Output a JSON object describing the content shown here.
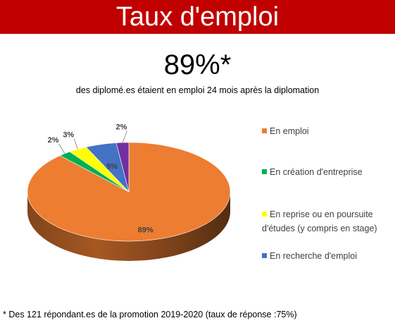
{
  "banner": {
    "title": "Taux d'emploi"
  },
  "headline": {
    "value": "89%*"
  },
  "subheadline": "des diplomé.es étaient en emploi 24 mois après la diplomation",
  "footnote": "* Des 121 répondant.es de la promotion 2019-2020 (taux de réponse :75%)",
  "chart_data": {
    "type": "pie",
    "style": "3d",
    "legend_position": "right",
    "slices": [
      {
        "name": "En emploi",
        "value": 89,
        "label": "89%",
        "color": "#ed7d31"
      },
      {
        "name": "En création d'entreprise",
        "value": 2,
        "label": "2%",
        "color": "#00b050"
      },
      {
        "name": "En reprise ou en poursuite d'études (y compris en stage)",
        "value": 3,
        "label": "3%",
        "color": "#ffff00"
      },
      {
        "name": "En recherche d'emploi",
        "value": 5,
        "label": "5%",
        "color": "#4472c4"
      },
      {
        "name": "",
        "value": 2,
        "label": "2%",
        "color": "#7030a0"
      }
    ]
  }
}
